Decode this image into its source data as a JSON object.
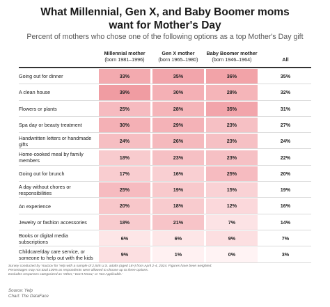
{
  "title": "What Millennial, Gen X, and Baby Boomer moms want for Mother's Day",
  "title_line1": "What Millennial, Gen X, and Baby Boomer moms",
  "title_line2": "want for Mother's Day",
  "subtitle": "Percent of mothers who chose one of the following options as a top Mother's Day gift",
  "columns": [
    {
      "name": "Millennial mother",
      "sub": "(born 1981–1996)"
    },
    {
      "name": "Gen X mother",
      "sub": "(born 1965–1980)"
    },
    {
      "name": "Baby Boomer mother",
      "sub": "(born 1946–1964)"
    },
    {
      "name": "All",
      "sub": ""
    }
  ],
  "colors": {
    "high": "#f09aa0",
    "low": "#fff3f4",
    "header_line": "#333333"
  },
  "chart_data": {
    "type": "heatmap",
    "title": "What Millennial, Gen X, and Baby Boomer moms want for Mother's Day",
    "subtitle": "Percent of mothers who chose one of the following options as a top Mother's Day gift",
    "series_names": [
      "Millennial mother",
      "Gen X mother",
      "Baby Boomer mother",
      "All"
    ],
    "unit": "%",
    "rows": [
      {
        "label": "Going out for dinner",
        "values": [
          33,
          35,
          36
        ],
        "all": 35
      },
      {
        "label": "A clean house",
        "values": [
          39,
          30,
          28
        ],
        "all": 32
      },
      {
        "label": "Flowers or plants",
        "values": [
          25,
          28,
          35
        ],
        "all": 31
      },
      {
        "label": "Spa day or beauty treatment",
        "values": [
          30,
          29,
          23
        ],
        "all": 27
      },
      {
        "label": "Handwritten letters or handmade gifts",
        "label_lines": [
          "Handwritten letters or handmade",
          "gifts"
        ],
        "values": [
          24,
          26,
          23
        ],
        "all": 24
      },
      {
        "label": "Home-cooked meal by family members",
        "label_lines": [
          "Home-cooked meal by family",
          "members"
        ],
        "values": [
          18,
          23,
          23
        ],
        "all": 22
      },
      {
        "label": "Going out for brunch",
        "values": [
          17,
          16,
          25
        ],
        "all": 20
      },
      {
        "label": "A day without chores or responsibilities",
        "label_lines": [
          "A day without chores or",
          "responsibilities"
        ],
        "values": [
          25,
          19,
          15
        ],
        "all": 19
      },
      {
        "label": "An experience",
        "values": [
          20,
          18,
          12
        ],
        "all": 16
      },
      {
        "label": "Jewelry or fashion accessories",
        "values": [
          18,
          21,
          7
        ],
        "all": 14
      },
      {
        "label": "Books or digital media subscriptions",
        "label_lines": [
          "Books or digital media",
          "subscriptions"
        ],
        "values": [
          6,
          6,
          9
        ],
        "all": 7
      },
      {
        "label": "Childcare/day care service, or someone to help out with the kids",
        "label_lines": [
          "Childcare/day care service, or",
          "someone to help out with the kids"
        ],
        "values": [
          9,
          1,
          0
        ],
        "all": 3
      }
    ]
  },
  "notes": [
    "Survey conducted by YouGov for Yelp with a sample of 2,545 U.S. adults (aged 18+) from April 2-4, 2024. Figures have been weighted.",
    "Percentages may not total 100% as respondents were allowed to choose up to three options.",
    "Excludes responses categorized as 'Other,' 'Don't Know,' or 'Not Applicable.'"
  ],
  "source": "Source: Yelp",
  "credit": "Chart: The DataFace"
}
